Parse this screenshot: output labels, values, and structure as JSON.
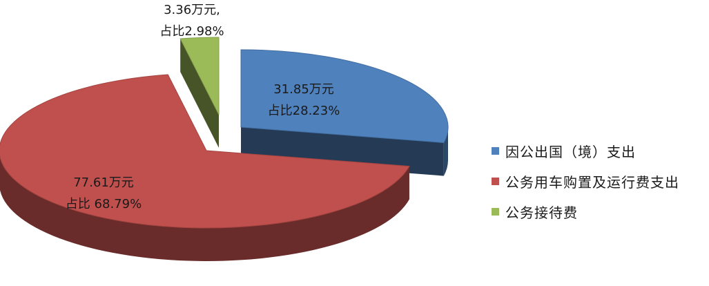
{
  "chart_data": {
    "type": "pie",
    "style": "3d-exploded",
    "slices": [
      {
        "name": "因公出国（境）支出",
        "value": 31.85,
        "percent": 28.23,
        "color": "#4F81BD",
        "label_line1": "31.85万元",
        "label_line2": "占比28.23%"
      },
      {
        "name": "公务用车购置及运行费支出",
        "value": 77.61,
        "percent": 68.79,
        "color": "#C0504D",
        "label_line1": "77.61万元",
        "label_line2": "占比 68.79%"
      },
      {
        "name": "公务接待费",
        "value": 3.36,
        "percent": 2.98,
        "color": "#9BBB59",
        "label_line1": "3.36万元,",
        "label_line2": "占比2.98%"
      }
    ],
    "legend": {
      "position": "right"
    }
  }
}
